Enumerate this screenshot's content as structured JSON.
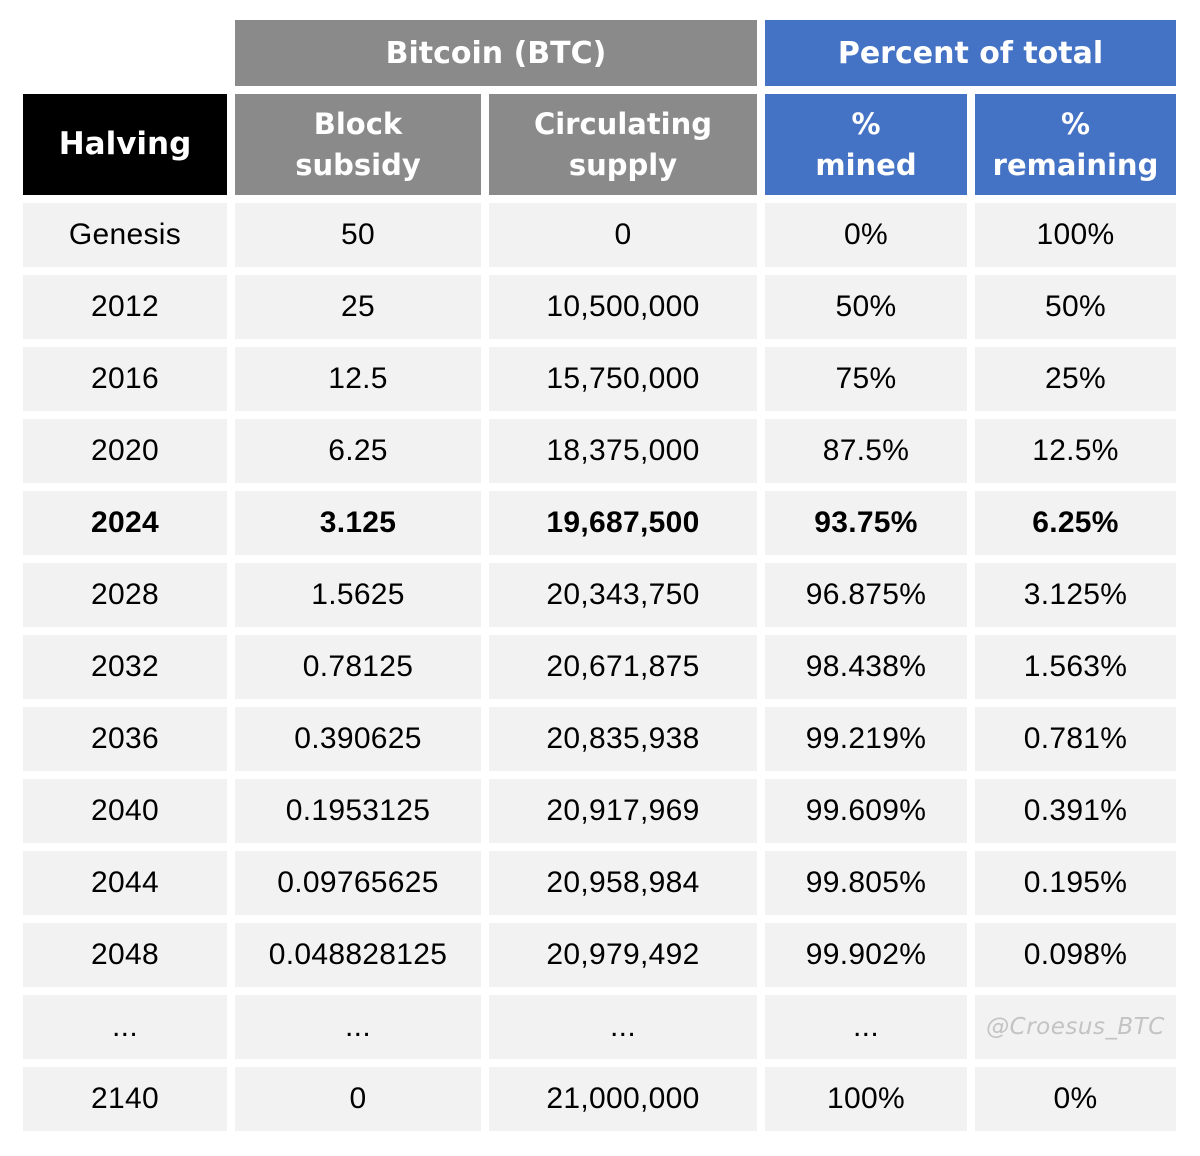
{
  "colors": {
    "gray_header": "#8a8a8a",
    "blue_header": "#4472c4",
    "black_header": "#000000",
    "row_background": "#f2f2f2",
    "header_text": "#ffffff",
    "body_text": "#000000",
    "watermark_text": "#c3c3c3"
  },
  "table": {
    "group_headers": [
      "Bitcoin (BTC)",
      "Percent of total"
    ],
    "columns": [
      {
        "line1": "Halving",
        "line2": ""
      },
      {
        "line1": "Block",
        "line2": "subsidy"
      },
      {
        "line1": "Circulating",
        "line2": "supply"
      },
      {
        "line1": "%",
        "line2": "mined"
      },
      {
        "line1": "%",
        "line2": "remaining"
      }
    ],
    "rows": [
      {
        "halving": "Genesis",
        "subsidy": "50",
        "supply": "0",
        "mined": "0%",
        "remaining": "100%",
        "bold": false
      },
      {
        "halving": "2012",
        "subsidy": "25",
        "supply": "10,500,000",
        "mined": "50%",
        "remaining": "50%",
        "bold": false
      },
      {
        "halving": "2016",
        "subsidy": "12.5",
        "supply": "15,750,000",
        "mined": "75%",
        "remaining": "25%",
        "bold": false
      },
      {
        "halving": "2020",
        "subsidy": "6.25",
        "supply": "18,375,000",
        "mined": "87.5%",
        "remaining": "12.5%",
        "bold": false
      },
      {
        "halving": "2024",
        "subsidy": "3.125",
        "supply": "19,687,500",
        "mined": "93.75%",
        "remaining": "6.25%",
        "bold": true
      },
      {
        "halving": "2028",
        "subsidy": "1.5625",
        "supply": "20,343,750",
        "mined": "96.875%",
        "remaining": "3.125%",
        "bold": false
      },
      {
        "halving": "2032",
        "subsidy": "0.78125",
        "supply": "20,671,875",
        "mined": "98.438%",
        "remaining": "1.563%",
        "bold": false
      },
      {
        "halving": "2036",
        "subsidy": "0.390625",
        "supply": "20,835,938",
        "mined": "99.219%",
        "remaining": "0.781%",
        "bold": false
      },
      {
        "halving": "2040",
        "subsidy": "0.1953125",
        "supply": "20,917,969",
        "mined": "99.609%",
        "remaining": "0.391%",
        "bold": false
      },
      {
        "halving": "2044",
        "subsidy": "0.09765625",
        "supply": "20,958,984",
        "mined": "99.805%",
        "remaining": "0.195%",
        "bold": false
      },
      {
        "halving": "2048",
        "subsidy": "0.048828125",
        "supply": "20,979,492",
        "mined": "99.902%",
        "remaining": "0.098%",
        "bold": false
      },
      {
        "halving": "...",
        "subsidy": "...",
        "supply": "...",
        "mined": "...",
        "remaining": "",
        "bold": false,
        "watermark": "@Croesus_BTC"
      },
      {
        "halving": "2140",
        "subsidy": "0",
        "supply": "21,000,000",
        "mined": "100%",
        "remaining": "0%",
        "bold": false
      }
    ]
  },
  "chart_data": {
    "type": "table",
    "group_headers": [
      {
        "label": "Bitcoin (BTC)",
        "spans": [
          "Block subsidy",
          "Circulating supply"
        ]
      },
      {
        "label": "Percent of total",
        "spans": [
          "% mined",
          "% remaining"
        ]
      }
    ],
    "columns": [
      "Halving",
      "Block subsidy",
      "Circulating supply",
      "% mined",
      "% remaining"
    ],
    "rows": [
      [
        "Genesis",
        "50",
        "0",
        "0%",
        "100%"
      ],
      [
        "2012",
        "25",
        "10,500,000",
        "50%",
        "50%"
      ],
      [
        "2016",
        "12.5",
        "15,750,000",
        "75%",
        "25%"
      ],
      [
        "2020",
        "6.25",
        "18,375,000",
        "87.5%",
        "12.5%"
      ],
      [
        "2024",
        "3.125",
        "19,687,500",
        "93.75%",
        "6.25%"
      ],
      [
        "2028",
        "1.5625",
        "20,343,750",
        "96.875%",
        "3.125%"
      ],
      [
        "2032",
        "0.78125",
        "20,671,875",
        "98.438%",
        "1.563%"
      ],
      [
        "2036",
        "0.390625",
        "20,835,938",
        "99.219%",
        "0.781%"
      ],
      [
        "2040",
        "0.1953125",
        "20,917,969",
        "99.609%",
        "0.391%"
      ],
      [
        "2044",
        "0.09765625",
        "20,958,984",
        "99.805%",
        "0.195%"
      ],
      [
        "2048",
        "0.048828125",
        "20,979,492",
        "99.902%",
        "0.098%"
      ],
      [
        "...",
        "...",
        "...",
        "...",
        ""
      ],
      [
        "2140",
        "0",
        "21,000,000",
        "100%",
        "0%"
      ]
    ],
    "highlighted_row": "2024",
    "annotation": "@Croesus_BTC"
  }
}
